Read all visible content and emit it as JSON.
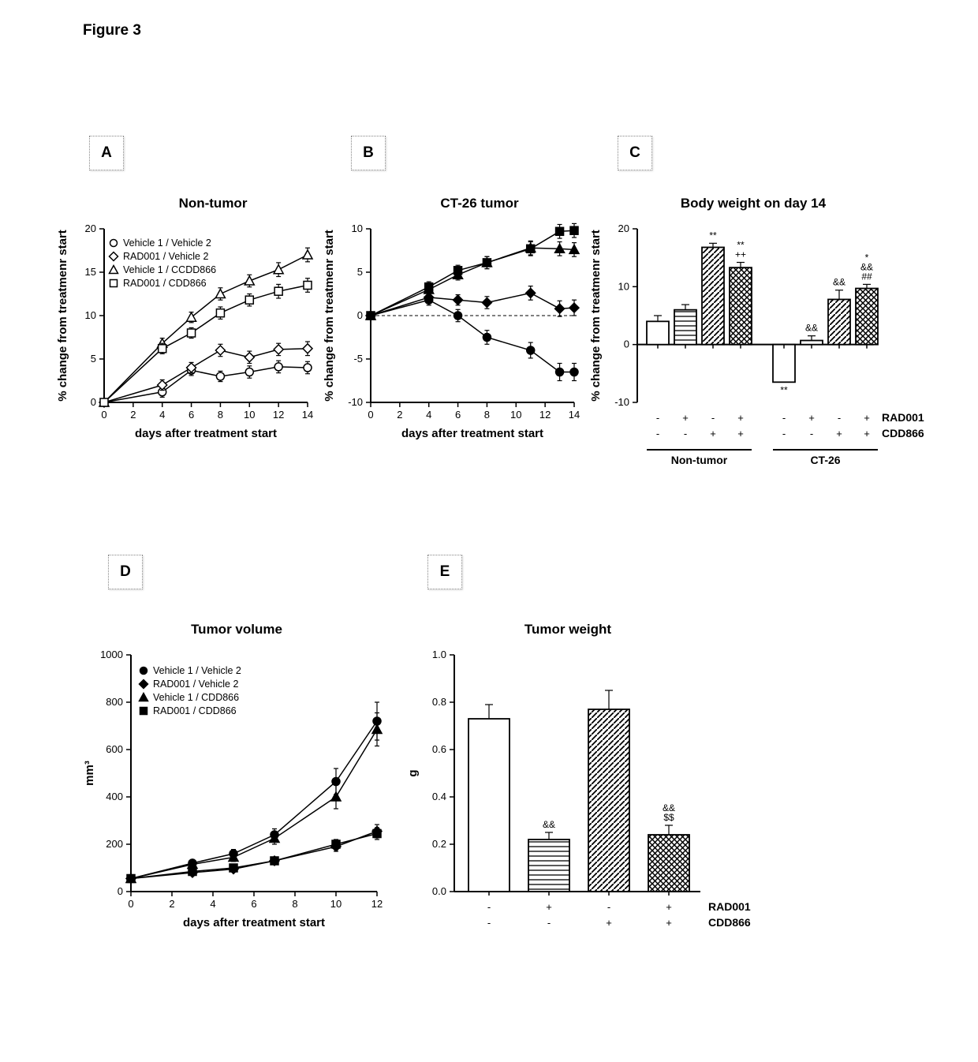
{
  "figure_title": "Figure 3",
  "panel_letters": {
    "A": "A",
    "B": "B",
    "C": "C",
    "D": "D",
    "E": "E"
  },
  "colors": {
    "line": "#000000",
    "background": "#ffffff",
    "box_border": "#888888"
  },
  "legend_open": [
    {
      "label": "Vehicle 1 / Vehicle 2",
      "marker": "open-circle"
    },
    {
      "label": "RAD001 / Vehicle 2",
      "marker": "open-diamond"
    },
    {
      "label": "Vehicle 1 / CCDD866",
      "marker": "open-triangle"
    },
    {
      "label": "RAD001 / CDD866",
      "marker": "open-square"
    }
  ],
  "legend_filled": [
    {
      "label": "Vehicle 1 / Vehicle 2",
      "marker": "filled-circle"
    },
    {
      "label": "RAD001 / Vehicle 2",
      "marker": "filled-diamond"
    },
    {
      "label": "Vehicle 1 / CDD866",
      "marker": "filled-triangle"
    },
    {
      "label": "RAD001 / CDD866",
      "marker": "filled-square"
    }
  ],
  "panelA": {
    "title": "Non-tumor",
    "xlabel": "days after treatment start",
    "ylabel": "% change from treatmenr start",
    "xlim": [
      0,
      14
    ],
    "xticks": [
      0,
      2,
      4,
      6,
      8,
      10,
      12,
      14
    ],
    "ylim": [
      0,
      20
    ],
    "yticks": [
      0,
      5,
      10,
      15,
      20
    ],
    "series": {
      "open-circle": [
        [
          0,
          0
        ],
        [
          4,
          1.2
        ],
        [
          6,
          3.7
        ],
        [
          8,
          3.0
        ],
        [
          10,
          3.5
        ],
        [
          12,
          4.1
        ],
        [
          14,
          4.0
        ]
      ],
      "open-diamond": [
        [
          0,
          0
        ],
        [
          4,
          2.0
        ],
        [
          6,
          4.0
        ],
        [
          8,
          6.0
        ],
        [
          10,
          5.2
        ],
        [
          12,
          6.1
        ],
        [
          14,
          6.2
        ]
      ],
      "open-triangle": [
        [
          0,
          0
        ],
        [
          4,
          6.8
        ],
        [
          6,
          9.8
        ],
        [
          8,
          12.5
        ],
        [
          10,
          14.0
        ],
        [
          12,
          15.3
        ],
        [
          14,
          17.0
        ]
      ],
      "open-square": [
        [
          0,
          0
        ],
        [
          4,
          6.2
        ],
        [
          6,
          8.0
        ],
        [
          8,
          10.3
        ],
        [
          10,
          11.8
        ],
        [
          12,
          12.8
        ],
        [
          14,
          13.5
        ]
      ]
    },
    "errors": {
      "open-circle": [
        0,
        0.6,
        0.6,
        0.6,
        0.7,
        0.7,
        0.7
      ],
      "open-diamond": [
        0,
        0.6,
        0.6,
        0.7,
        0.7,
        0.7,
        0.8
      ],
      "open-triangle": [
        0,
        0.6,
        0.6,
        0.7,
        0.7,
        0.8,
        0.8
      ],
      "open-square": [
        0,
        0.6,
        0.6,
        0.7,
        0.7,
        0.8,
        0.8
      ]
    }
  },
  "panelB": {
    "title": "CT-26 tumor",
    "xlabel": "days after treatment start",
    "ylabel": "% change from treatmenr start",
    "xlim": [
      0,
      14
    ],
    "xticks": [
      0,
      2,
      4,
      6,
      8,
      10,
      12,
      14
    ],
    "ylim": [
      -10,
      10
    ],
    "yticks": [
      -10,
      -5,
      0,
      5,
      10
    ],
    "series": {
      "filled-circle": [
        [
          0,
          0
        ],
        [
          4,
          1.8
        ],
        [
          6,
          0.0
        ],
        [
          8,
          -2.5
        ],
        [
          11,
          -4.0
        ],
        [
          13,
          -6.5
        ],
        [
          14,
          -6.5
        ]
      ],
      "filled-diamond": [
        [
          0,
          0
        ],
        [
          4,
          2.1
        ],
        [
          6,
          1.8
        ],
        [
          8,
          1.5
        ],
        [
          11,
          2.6
        ],
        [
          13,
          0.8
        ],
        [
          14,
          0.9
        ]
      ],
      "filled-triangle": [
        [
          0,
          0
        ],
        [
          4,
          3.0
        ],
        [
          6,
          4.7
        ],
        [
          8,
          6.1
        ],
        [
          11,
          7.8
        ],
        [
          13,
          7.7
        ],
        [
          14,
          7.6
        ]
      ],
      "filled-square": [
        [
          0,
          0
        ],
        [
          4,
          3.3
        ],
        [
          6,
          5.2
        ],
        [
          8,
          6.1
        ],
        [
          11,
          7.7
        ],
        [
          13,
          9.7
        ],
        [
          14,
          9.8
        ]
      ]
    },
    "errors": {
      "filled-circle": [
        0,
        0.6,
        0.7,
        0.8,
        0.9,
        1.0,
        1.0
      ],
      "filled-diamond": [
        0,
        0.6,
        0.6,
        0.7,
        0.8,
        0.9,
        0.9
      ],
      "filled-triangle": [
        0,
        0.6,
        0.6,
        0.7,
        0.8,
        0.8,
        0.8
      ],
      "filled-square": [
        0,
        0.6,
        0.6,
        0.7,
        0.8,
        0.8,
        0.8
      ]
    }
  },
  "panelC": {
    "title": "Body weight on day 14",
    "ylabel": "% change from treatmenr start",
    "ylim": [
      -10,
      20
    ],
    "yticks": [
      -10,
      0,
      10,
      20
    ],
    "groups": [
      "Non-tumor",
      "CT-26"
    ],
    "treatment_rows": [
      {
        "name": "RAD001",
        "values": [
          "-",
          "+",
          "-",
          "+",
          "-",
          "+",
          "-",
          "+"
        ]
      },
      {
        "name": "CDD866",
        "values": [
          "-",
          "-",
          "+",
          "+",
          "-",
          "-",
          "+",
          "+"
        ]
      }
    ],
    "bars": [
      {
        "value": 4.0,
        "err": 1.0,
        "fill": "white",
        "sig": []
      },
      {
        "value": 6.0,
        "err": 0.9,
        "fill": "hstripe",
        "sig": []
      },
      {
        "value": 16.8,
        "err": 0.7,
        "fill": "diag",
        "sig": [
          "**"
        ]
      },
      {
        "value": 13.3,
        "err": 0.9,
        "fill": "cross",
        "sig": [
          "++",
          "**"
        ]
      },
      {
        "value": -6.5,
        "err": 0.0,
        "fill": "white",
        "sig": [
          "**"
        ]
      },
      {
        "value": 0.7,
        "err": 0.8,
        "fill": "hstripe",
        "sig": [
          "&&"
        ]
      },
      {
        "value": 7.8,
        "err": 1.6,
        "fill": "diag",
        "sig": [
          "&&"
        ]
      },
      {
        "value": 9.7,
        "err": 0.7,
        "fill": "cross",
        "sig": [
          "##",
          "&&",
          "*"
        ]
      }
    ]
  },
  "panelD": {
    "title": "Tumor volume",
    "xlabel": "days after treatment start",
    "ylabel": "mm³",
    "ylabel_html": "mm<sup>3</sup>",
    "xlim": [
      0,
      12
    ],
    "xticks": [
      0,
      2,
      4,
      6,
      8,
      10,
      12
    ],
    "ylim": [
      0,
      1000
    ],
    "yticks": [
      0,
      200,
      400,
      600,
      800,
      1000
    ],
    "series": {
      "filled-circle": [
        [
          0,
          55
        ],
        [
          3,
          120
        ],
        [
          5,
          160
        ],
        [
          7,
          240
        ],
        [
          10,
          465
        ],
        [
          12,
          720
        ]
      ],
      "filled-diamond": [
        [
          0,
          55
        ],
        [
          3,
          80
        ],
        [
          5,
          95
        ],
        [
          7,
          130
        ],
        [
          10,
          190
        ],
        [
          12,
          255
        ]
      ],
      "filled-triangle": [
        [
          0,
          55
        ],
        [
          3,
          115
        ],
        [
          5,
          145
        ],
        [
          7,
          225
        ],
        [
          10,
          400
        ],
        [
          12,
          685
        ]
      ],
      "filled-square": [
        [
          0,
          55
        ],
        [
          3,
          85
        ],
        [
          5,
          100
        ],
        [
          7,
          130
        ],
        [
          10,
          200
        ],
        [
          12,
          245
        ]
      ]
    },
    "errors": {
      "filled-circle": [
        0,
        15,
        18,
        25,
        55,
        80
      ],
      "filled-diamond": [
        0,
        10,
        12,
        15,
        20,
        28
      ],
      "filled-triangle": [
        0,
        15,
        18,
        25,
        50,
        70
      ],
      "filled-square": [
        0,
        10,
        12,
        15,
        20,
        25
      ]
    }
  },
  "panelE": {
    "title": "Tumor weight",
    "ylabel": "g",
    "ylim": [
      0,
      1.0
    ],
    "yticks": [
      0,
      0.2,
      0.4,
      0.6,
      0.8,
      1.0
    ],
    "treatment_rows": [
      {
        "name": "RAD001",
        "values": [
          "-",
          "+",
          "-",
          "+"
        ]
      },
      {
        "name": "CDD866",
        "values": [
          "-",
          "-",
          "+",
          "+"
        ]
      }
    ],
    "bars": [
      {
        "value": 0.73,
        "err": 0.06,
        "fill": "white",
        "sig": []
      },
      {
        "value": 0.22,
        "err": 0.03,
        "fill": "hstripe",
        "sig": [
          "&&"
        ]
      },
      {
        "value": 0.77,
        "err": 0.08,
        "fill": "diag",
        "sig": []
      },
      {
        "value": 0.24,
        "err": 0.04,
        "fill": "cross",
        "sig": [
          "$$",
          "&&"
        ]
      }
    ]
  }
}
